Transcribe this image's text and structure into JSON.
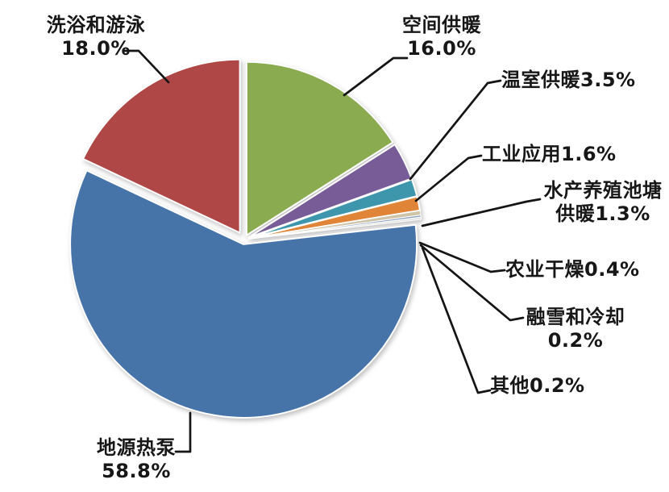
{
  "chart_data": {
    "type": "pie",
    "title": "",
    "unit": "%",
    "legend": false,
    "data_labels": "outside with black leader lines",
    "start_angle": "12 o'clock, clockwise",
    "categories": [
      "空间供暖",
      "温室供暖",
      "工业应用",
      "水产养殖池塘供暖",
      "农业干燥",
      "融雪和冷却",
      "其他",
      "地源热泵",
      "洗浴和游泳"
    ],
    "values": [
      16.0,
      3.5,
      1.6,
      1.3,
      0.4,
      0.2,
      0.2,
      58.8,
      18.0
    ],
    "slices": [
      {
        "id": "space-heating",
        "label": "空间供暖",
        "value": 16.0,
        "color": "#8AAB4F"
      },
      {
        "id": "greenhouse-heating",
        "label": "温室供暖",
        "value": 3.5,
        "color": "#775C97"
      },
      {
        "id": "industrial-use",
        "label": "工业应用",
        "value": 1.6,
        "color": "#3D96AC"
      },
      {
        "id": "aquaculture-pond-heating",
        "label": "水产养殖池塘供暖",
        "value": 1.3,
        "color": "#E08538"
      },
      {
        "id": "agricultural-drying",
        "label": "农业干燥",
        "value": 0.4,
        "color": "#CFC4A9"
      },
      {
        "id": "snow-melting-cooling",
        "label": "融雪和冷却",
        "value": 0.2,
        "color": "#8FA5C3"
      },
      {
        "id": "other",
        "label": "其他",
        "value": 0.2,
        "color": "#E3E3E3"
      },
      {
        "id": "ground-source-heat-pump",
        "label": "地源热泵",
        "value": 58.8,
        "color": "#4673A8"
      },
      {
        "id": "bathing-swimming",
        "label": "洗浴和游泳",
        "value": 18.0,
        "color": "#AE4745"
      }
    ]
  },
  "labels": {
    "bathing": {
      "line1": "洗浴和游泳",
      "line2": "18.0%"
    },
    "space": {
      "line1": "空间供暖",
      "line2": "16.0%"
    },
    "greenhouse": {
      "text": "温室供暖3.5%"
    },
    "industrial": {
      "text": "工业应用1.6%"
    },
    "aquaculture": {
      "line1": "水产养殖池塘",
      "line2": "供暖1.3%"
    },
    "agriculture": {
      "text": "农业干燥0.4%"
    },
    "snow": {
      "line1": "融雪和冷却",
      "line2": "0.2%"
    },
    "other": {
      "text": "其他0.2%"
    },
    "gshp": {
      "line1": "地源热泵",
      "line2": "58.8%"
    }
  }
}
